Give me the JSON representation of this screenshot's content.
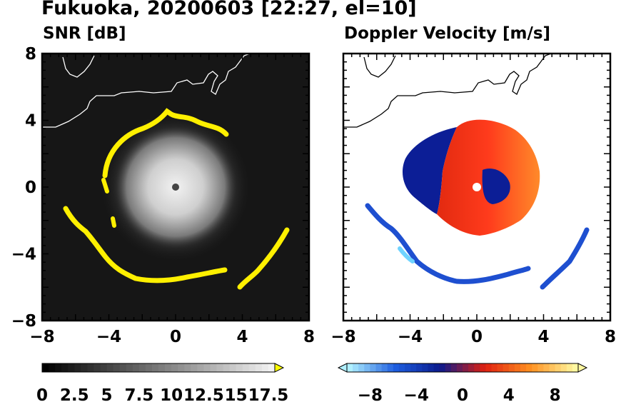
{
  "title": "Fukuoka, 20200603 [22:27, el=10]",
  "chart_data": [
    {
      "type": "heatmap",
      "panel": "left",
      "title": "SNR [dB]",
      "xlim": [
        -8,
        8
      ],
      "ylim": [
        -8,
        8
      ],
      "x_ticks": [
        "−8",
        "−4",
        "0",
        "4",
        "8"
      ],
      "y_ticks": [
        "8",
        "4",
        "0",
        "−4",
        "−8"
      ],
      "colorbar": {
        "range": [
          0,
          18
        ],
        "extend": "max",
        "tick_labels": [
          "0",
          "2.5",
          "5",
          "7.5",
          "10",
          "12.5",
          "15",
          "17.5"
        ],
        "colors": [
          "#000000",
          "#ffff00"
        ]
      },
      "features": {
        "center_echo_radius_km": 3.5,
        "eyewall_ring_radius_km": 4.5,
        "outer_band_radius_km": 5.7
      }
    },
    {
      "type": "heatmap",
      "panel": "right",
      "title": "Doppler Velocity [m/s]",
      "xlim": [
        -8,
        8
      ],
      "ylim": [
        -8,
        8
      ],
      "x_ticks": [
        "−8",
        "−4",
        "0",
        "4",
        "8"
      ],
      "y_ticks": [],
      "colorbar": {
        "range": [
          -10,
          10
        ],
        "extend": "both",
        "tick_labels": [
          "−8",
          "−4",
          "0",
          "4",
          "8"
        ],
        "colors": [
          "#b0f0ff",
          "#1e5ee0",
          "#0a1a8c",
          "#e02010",
          "#ff9020",
          "#fff8a0"
        ]
      }
    }
  ]
}
